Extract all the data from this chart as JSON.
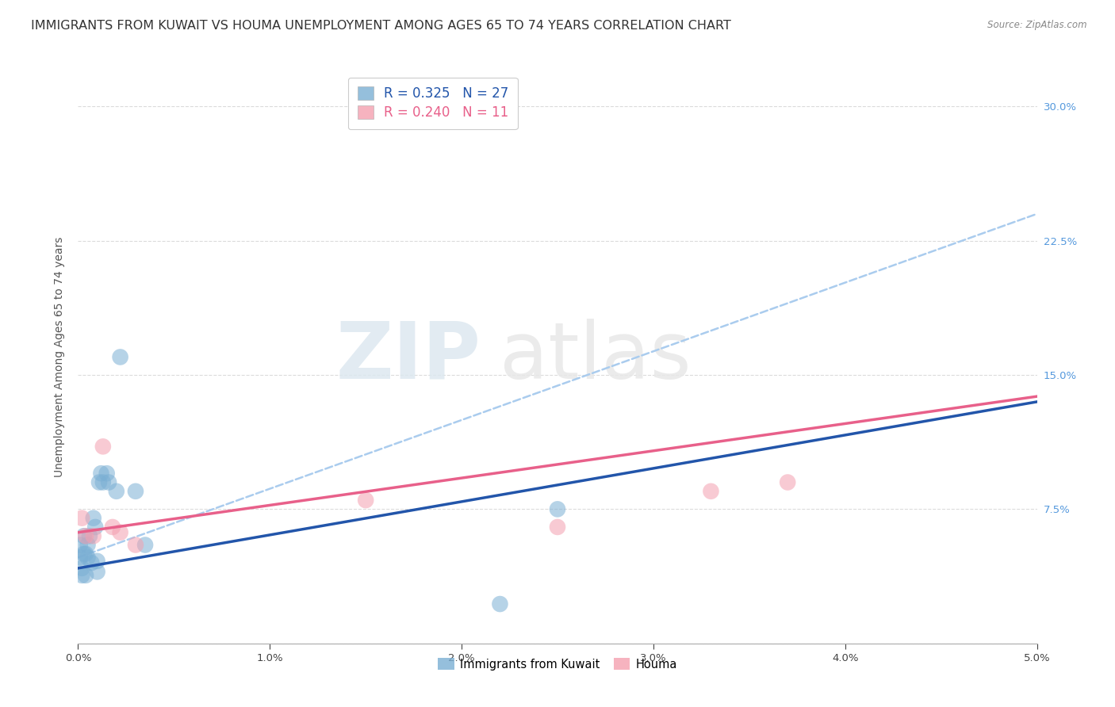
{
  "title": "IMMIGRANTS FROM KUWAIT VS HOUMA UNEMPLOYMENT AMONG AGES 65 TO 74 YEARS CORRELATION CHART",
  "source": "Source: ZipAtlas.com",
  "ylabel": "Unemployment Among Ages 65 to 74 years",
  "x_tick_labels": [
    "0.0%",
    "1.0%",
    "2.0%",
    "3.0%",
    "4.0%",
    "5.0%"
  ],
  "y_tick_labels_right": [
    "",
    "7.5%",
    "15.0%",
    "22.5%",
    "30.0%"
  ],
  "x_range": [
    0.0,
    0.05
  ],
  "y_range": [
    0.0,
    0.32
  ],
  "legend_entries": [
    {
      "label_r": "R = 0.325",
      "label_n": "N = 27",
      "color": "#87CEEB"
    },
    {
      "label_r": "R = 0.240",
      "label_n": "N = 11",
      "color": "#FFB6C1"
    }
  ],
  "blue_scatter_x": [
    0.0001,
    0.0001,
    0.0002,
    0.0002,
    0.0003,
    0.0003,
    0.0004,
    0.0004,
    0.0005,
    0.0005,
    0.0006,
    0.0007,
    0.0008,
    0.0009,
    0.001,
    0.001,
    0.0011,
    0.0012,
    0.0013,
    0.0015,
    0.0016,
    0.002,
    0.0022,
    0.003,
    0.0035,
    0.022,
    0.025
  ],
  "blue_scatter_y": [
    0.048,
    0.055,
    0.042,
    0.038,
    0.05,
    0.06,
    0.05,
    0.038,
    0.048,
    0.055,
    0.06,
    0.045,
    0.07,
    0.065,
    0.04,
    0.046,
    0.09,
    0.095,
    0.09,
    0.095,
    0.09,
    0.085,
    0.16,
    0.085,
    0.055,
    0.022,
    0.075
  ],
  "pink_scatter_x": [
    0.0002,
    0.0004,
    0.0008,
    0.0013,
    0.0018,
    0.0022,
    0.003,
    0.015,
    0.025,
    0.033,
    0.037
  ],
  "pink_scatter_y": [
    0.07,
    0.06,
    0.06,
    0.11,
    0.065,
    0.062,
    0.055,
    0.08,
    0.065,
    0.085,
    0.09
  ],
  "blue_line_x": [
    0.0,
    0.05
  ],
  "blue_line_y": [
    0.042,
    0.135
  ],
  "pink_line_x": [
    0.0,
    0.05
  ],
  "pink_line_y": [
    0.062,
    0.138
  ],
  "blue_dashed_line_x": [
    0.0,
    0.05
  ],
  "blue_dashed_line_y": [
    0.048,
    0.24
  ],
  "watermark_zip": "ZIP",
  "watermark_atlas": "atlas",
  "scatter_size": 220,
  "background_color": "#ffffff",
  "grid_color": "#d8d8d8",
  "blue_color": "#7BAFD4",
  "pink_color": "#F4A0B0",
  "blue_line_color": "#2255AA",
  "pink_line_color": "#E8608A",
  "blue_dashed_color": "#AACCEE",
  "title_fontsize": 11.5,
  "axis_label_fontsize": 10,
  "tick_fontsize": 9.5,
  "legend_fontsize": 12,
  "legend_r_color_blue": "#2255AA",
  "legend_n_color_blue": "#2255AA",
  "legend_r_color_pink": "#E8608A",
  "legend_n_color_pink": "#E8608A"
}
